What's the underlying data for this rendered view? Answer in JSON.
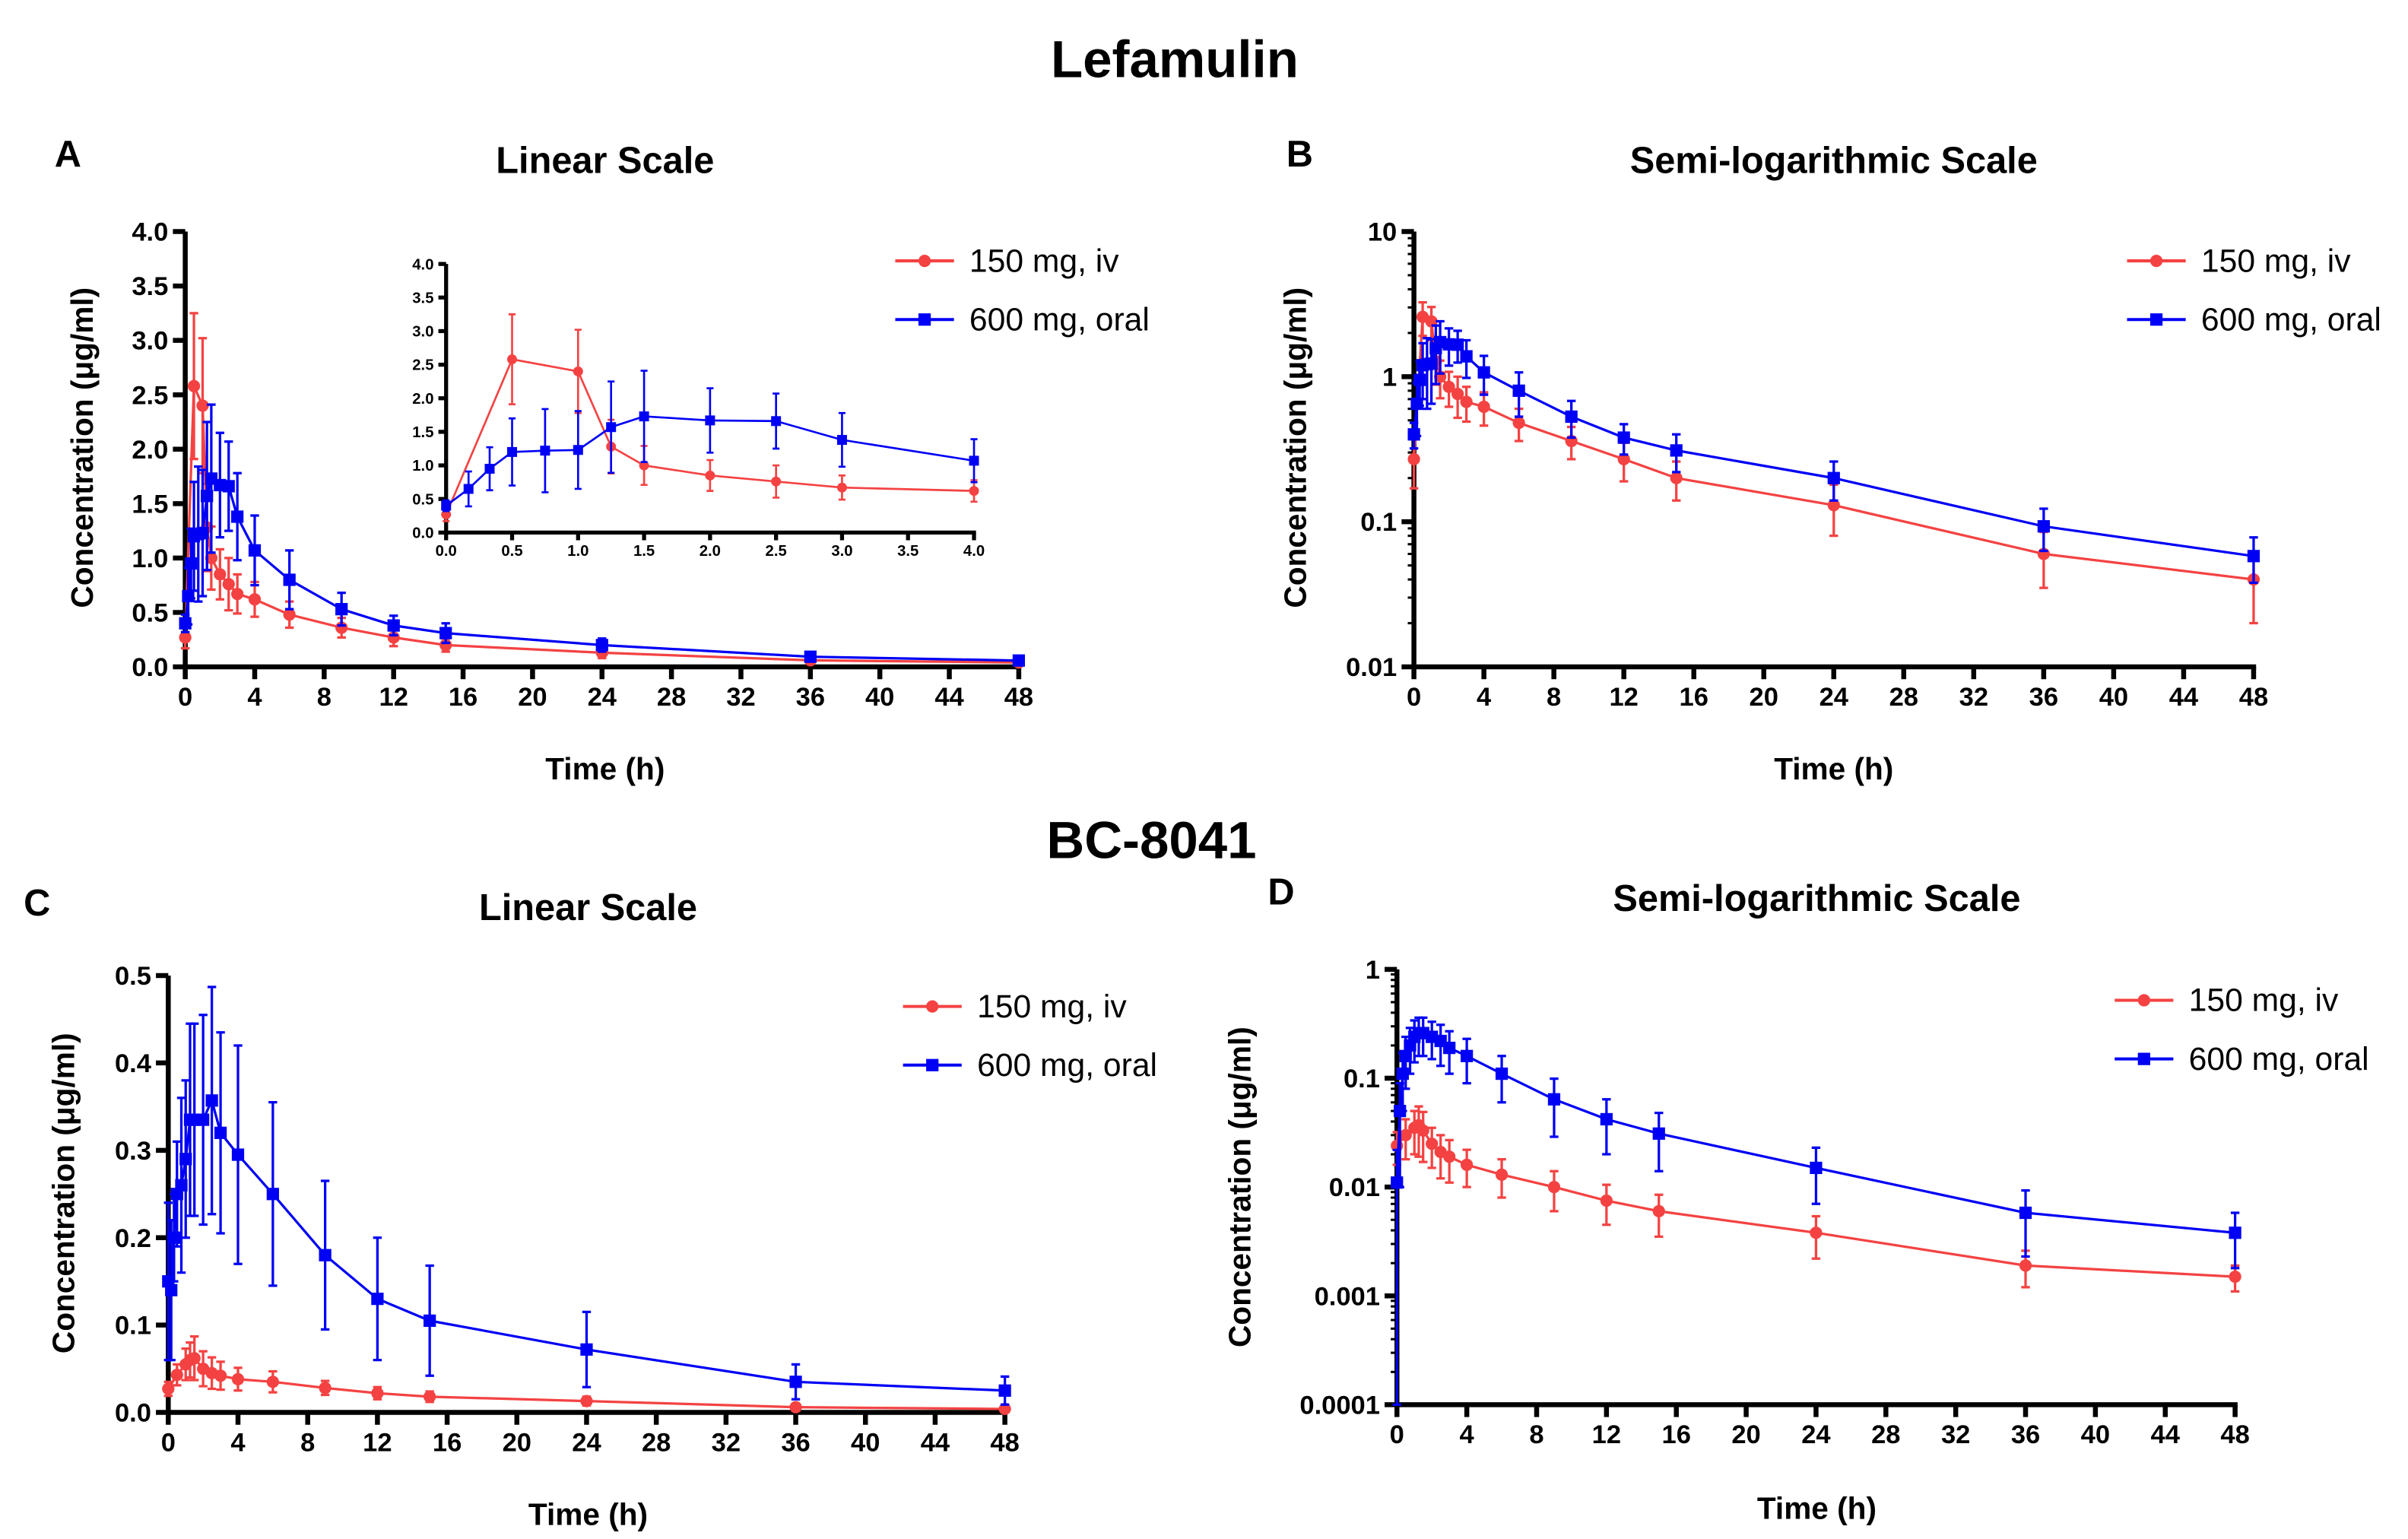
{
  "figure": {
    "title_top": "Lefamulin",
    "title_bottom": "BC-8041"
  },
  "colors": {
    "iv": "#f44242",
    "oral": "#0000f5",
    "axis": "#000000"
  },
  "chart_data": [
    {
      "panel": "A",
      "type": "line",
      "title": "Linear Scale",
      "xlabel": "Time (h)",
      "ylabel": "Concentration (μg/ml)",
      "yscale": "linear",
      "xlim": [
        0,
        48
      ],
      "ylim": [
        0,
        4.0
      ],
      "xticks": [
        "0",
        "4",
        "8",
        "12",
        "16",
        "20",
        "24",
        "28",
        "32",
        "36",
        "40",
        "44",
        "48"
      ],
      "yticks": [
        "0.0",
        "0.5",
        "1.0",
        "1.5",
        "2.0",
        "2.5",
        "3.0",
        "3.5",
        "4.0"
      ],
      "legend": "top-right",
      "inset": {
        "xlim": [
          0,
          4
        ],
        "ylim": [
          0,
          4
        ],
        "xticks": [
          "0.0",
          "0.5",
          "1.0",
          "1.5",
          "2.0",
          "2.5",
          "3.0",
          "3.5",
          "4.0"
        ],
        "yticks": [
          "0.0",
          "0.5",
          "1.0",
          "1.5",
          "2.0",
          "2.5",
          "3.0",
          "3.5",
          "4.0"
        ]
      },
      "series": [
        {
          "name": "150 mg, iv",
          "key": "iv",
          "marker": "circle",
          "x": [
            0,
            0.5,
            1,
            1.25,
            1.5,
            2,
            2.5,
            3,
            4,
            6,
            9,
            12,
            15,
            24,
            36,
            48
          ],
          "y": [
            0.27,
            2.58,
            2.4,
            1.28,
            1.0,
            0.85,
            0.76,
            0.67,
            0.62,
            0.48,
            0.36,
            0.27,
            0.2,
            0.13,
            0.06,
            0.04
          ],
          "sd": [
            0.1,
            0.67,
            0.62,
            0.4,
            0.29,
            0.23,
            0.24,
            0.18,
            0.16,
            0.12,
            0.09,
            0.08,
            0.06,
            0.05,
            0.025,
            0.02
          ]
        },
        {
          "name": "600 mg, oral",
          "key": "oral",
          "marker": "square",
          "x": [
            0,
            0.17,
            0.33,
            0.5,
            0.75,
            1,
            1.25,
            1.5,
            2,
            2.5,
            3,
            4,
            6,
            9,
            12,
            15,
            24,
            36,
            48
          ],
          "y": [
            0.4,
            0.65,
            0.95,
            1.2,
            1.22,
            1.23,
            1.57,
            1.73,
            1.67,
            1.66,
            1.38,
            1.07,
            0.8,
            0.53,
            0.38,
            0.31,
            0.2,
            0.093,
            0.058
          ],
          "sd": [
            0.08,
            0.26,
            0.32,
            0.5,
            0.62,
            0.58,
            0.68,
            0.68,
            0.48,
            0.41,
            0.4,
            0.32,
            0.27,
            0.15,
            0.09,
            0.09,
            0.06,
            0.03,
            0.02
          ]
        }
      ]
    },
    {
      "panel": "B",
      "type": "line",
      "title": "Semi-logarithmic Scale",
      "xlabel": "Time (h)",
      "ylabel": "Concentration (μg/ml)",
      "yscale": "log",
      "xlim": [
        0,
        48
      ],
      "ylim": [
        0.01,
        10
      ],
      "xticks": [
        "0",
        "4",
        "8",
        "12",
        "16",
        "20",
        "24",
        "28",
        "32",
        "36",
        "40",
        "44",
        "48"
      ],
      "yticks": [
        "0.01",
        "0.1",
        "1",
        "10"
      ],
      "legend": "top-right",
      "series": [
        {
          "name": "150 mg, iv",
          "key": "iv",
          "marker": "circle",
          "x": [
            0,
            0.5,
            1,
            1.25,
            1.5,
            2,
            2.5,
            3,
            4,
            6,
            9,
            12,
            15,
            24,
            36,
            48
          ],
          "y": [
            0.27,
            2.58,
            2.4,
            1.28,
            1.0,
            0.85,
            0.76,
            0.67,
            0.62,
            0.48,
            0.36,
            0.27,
            0.2,
            0.13,
            0.06,
            0.04
          ],
          "sd": [
            0.1,
            0.67,
            0.62,
            0.4,
            0.29,
            0.23,
            0.24,
            0.18,
            0.16,
            0.12,
            0.09,
            0.08,
            0.06,
            0.05,
            0.025,
            0.02
          ]
        },
        {
          "name": "600 mg, oral",
          "key": "oral",
          "marker": "square",
          "x": [
            0,
            0.17,
            0.33,
            0.5,
            0.75,
            1,
            1.25,
            1.5,
            2,
            2.5,
            3,
            4,
            6,
            9,
            12,
            15,
            24,
            36,
            48
          ],
          "y": [
            0.4,
            0.65,
            0.95,
            1.2,
            1.22,
            1.23,
            1.57,
            1.73,
            1.67,
            1.66,
            1.38,
            1.07,
            0.8,
            0.53,
            0.38,
            0.31,
            0.2,
            0.093,
            0.058
          ],
          "sd": [
            0.08,
            0.26,
            0.32,
            0.5,
            0.62,
            0.58,
            0.68,
            0.68,
            0.48,
            0.41,
            0.4,
            0.32,
            0.27,
            0.15,
            0.09,
            0.09,
            0.06,
            0.03,
            0.02
          ]
        }
      ]
    },
    {
      "panel": "C",
      "type": "line",
      "title": "Linear Scale",
      "xlabel": "Time (h)",
      "ylabel": "Concentration (μg/ml)",
      "yscale": "linear",
      "xlim": [
        0,
        48
      ],
      "ylim": [
        0,
        0.5
      ],
      "xticks": [
        "0",
        "4",
        "8",
        "12",
        "16",
        "20",
        "24",
        "28",
        "32",
        "36",
        "40",
        "44",
        "48"
      ],
      "yticks": [
        "0.0",
        "0.1",
        "0.2",
        "0.3",
        "0.4",
        "0.5"
      ],
      "legend": "top-right",
      "series": [
        {
          "name": "150 mg, iv",
          "key": "iv",
          "marker": "circle",
          "x": [
            0,
            0.5,
            1,
            1.25,
            1.5,
            2,
            2.5,
            3,
            4,
            6,
            9,
            12,
            15,
            24,
            36,
            48
          ],
          "y": [
            0.027,
            0.043,
            0.055,
            0.06,
            0.062,
            0.05,
            0.045,
            0.042,
            0.038,
            0.035,
            0.028,
            0.022,
            0.018,
            0.013,
            0.006,
            0.004
          ],
          "sd": [
            0.008,
            0.012,
            0.018,
            0.02,
            0.025,
            0.02,
            0.018,
            0.016,
            0.013,
            0.012,
            0.008,
            0.007,
            0.006,
            0.005,
            0.003,
            0.002
          ]
        },
        {
          "name": "600 mg, oral",
          "key": "oral",
          "marker": "square",
          "x": [
            0,
            0.17,
            0.33,
            0.5,
            0.75,
            1,
            1.25,
            1.5,
            2,
            2.5,
            3,
            4,
            6,
            9,
            12,
            15,
            24,
            36,
            48
          ],
          "y": [
            0.15,
            0.14,
            0.2,
            0.25,
            0.26,
            0.29,
            0.335,
            0.335,
            0.335,
            0.357,
            0.32,
            0.295,
            0.25,
            0.18,
            0.13,
            0.105,
            0.072,
            0.035,
            0.025
          ],
          "sd": [
            0.09,
            0.08,
            0.05,
            0.06,
            0.1,
            0.09,
            0.11,
            0.11,
            0.12,
            0.13,
            0.115,
            0.125,
            0.105,
            0.085,
            0.07,
            0.063,
            0.043,
            0.02,
            0.016
          ]
        }
      ]
    },
    {
      "panel": "D",
      "type": "line",
      "title": "Semi-logarithmic Scale",
      "xlabel": "Time (h)",
      "ylabel": "Concentration (μg/ml)",
      "yscale": "log",
      "xlim": [
        0,
        48
      ],
      "ylim": [
        0.0001,
        1
      ],
      "xticks": [
        "0",
        "4",
        "8",
        "12",
        "16",
        "20",
        "24",
        "28",
        "32",
        "36",
        "40",
        "44",
        "48"
      ],
      "yticks": [
        "0.0001",
        "0.001",
        "0.01",
        "0.1",
        "1"
      ],
      "legend": "top-right",
      "series": [
        {
          "name": "150 mg, iv",
          "key": "iv",
          "marker": "circle",
          "x": [
            0,
            0.5,
            1,
            1.25,
            1.5,
            2,
            2.5,
            3,
            4,
            6,
            9,
            12,
            15,
            24,
            36,
            48
          ],
          "y": [
            0.024,
            0.03,
            0.035,
            0.037,
            0.033,
            0.025,
            0.021,
            0.019,
            0.016,
            0.013,
            0.01,
            0.0075,
            0.006,
            0.0038,
            0.0019,
            0.0015
          ],
          "sd": [
            0.008,
            0.012,
            0.015,
            0.018,
            0.016,
            0.01,
            0.009,
            0.008,
            0.006,
            0.005,
            0.004,
            0.003,
            0.0025,
            0.0016,
            0.0007,
            0.0004
          ]
        },
        {
          "name": "600 mg, oral",
          "key": "oral",
          "marker": "square",
          "x": [
            0,
            0.17,
            0.33,
            0.5,
            0.75,
            1,
            1.25,
            1.5,
            2,
            2.5,
            3,
            4,
            6,
            9,
            12,
            15,
            24,
            36,
            48
          ],
          "y": [
            0.011,
            0.05,
            0.11,
            0.16,
            0.2,
            0.24,
            0.26,
            0.26,
            0.24,
            0.22,
            0.19,
            0.16,
            0.11,
            0.064,
            0.042,
            0.031,
            0.015,
            0.0058,
            0.0038
          ],
          "sd": [
            0.0109,
            0.04,
            0.06,
            0.08,
            0.09,
            0.1,
            0.1,
            0.1,
            0.09,
            0.09,
            0.08,
            0.07,
            0.05,
            0.035,
            0.022,
            0.017,
            0.008,
            0.0035,
            0.002
          ]
        }
      ]
    }
  ]
}
